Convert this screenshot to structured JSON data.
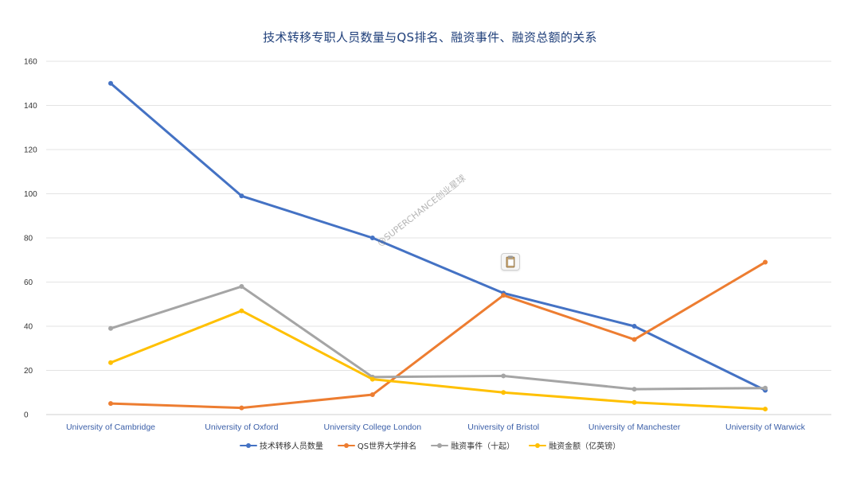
{
  "chart_data": {
    "type": "line",
    "title": "技术转移专职人员数量与QS排名、融资事件、融资总额的关系",
    "xlabel": "",
    "ylabel": "",
    "ylim": [
      0,
      160
    ],
    "yticks": [
      0,
      20,
      40,
      60,
      80,
      100,
      120,
      140,
      160
    ],
    "grid": true,
    "legend_position": "bottom",
    "categories": [
      "University of Cambridge",
      "University of Oxford",
      "University College London",
      "University of Bristol",
      "University of Manchester",
      "University of Warwick"
    ],
    "series": [
      {
        "name": "技术转移人员数量",
        "color": "#4472c4",
        "values": [
          150,
          99,
          80,
          55,
          40,
          11
        ]
      },
      {
        "name": "QS世界大学排名",
        "color": "#ed7d31",
        "values": [
          5,
          3,
          9,
          54,
          34,
          69
        ]
      },
      {
        "name": "融资事件（十起）",
        "color": "#a5a5a5",
        "values": [
          39,
          58,
          17,
          17.5,
          11.5,
          12
        ]
      },
      {
        "name": "融资金额（亿英镑）",
        "color": "#ffc000",
        "values": [
          23.5,
          47,
          16,
          10,
          5.5,
          2.5
        ]
      }
    ]
  },
  "watermark": "@SUPERCHANCE创业星球",
  "icons": {
    "floating": "clipboard-icon"
  }
}
